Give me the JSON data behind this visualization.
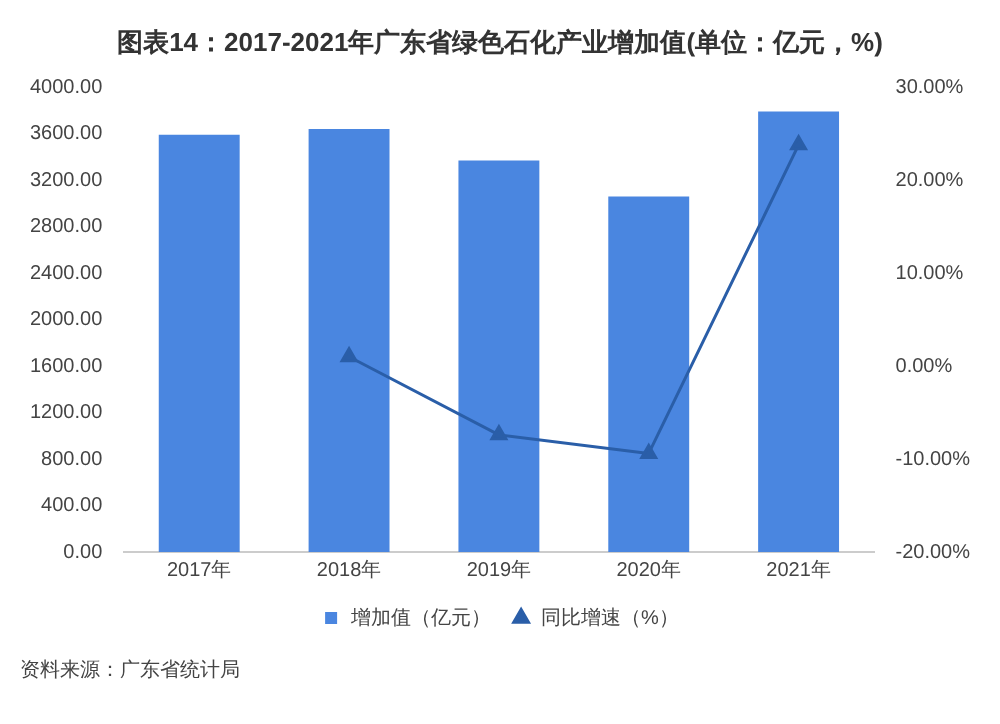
{
  "chart_data": {
    "type": "bar",
    "title": "图表14：2017-2021年广东省绿色石化产业增加值(单位：亿元，%)",
    "categories": [
      "2017年",
      "2018年",
      "2019年",
      "2020年",
      "2021年"
    ],
    "series": [
      {
        "name": "增加值（亿元）",
        "color": "#4a86e0",
        "values": [
          3590,
          3640,
          3370,
          3060,
          3790
        ]
      },
      {
        "name": "同比增速（%）",
        "type": "line",
        "color": "#2a5ea8",
        "axis": "y2",
        "marker": "triangle",
        "values": [
          null,
          1.0,
          -7.4,
          -9.4,
          23.8
        ]
      }
    ],
    "ylim": [
      0,
      4000
    ],
    "yticks": [
      {
        "value": 0,
        "label": "0.00"
      },
      {
        "value": 400,
        "label": "400.00"
      },
      {
        "value": 800,
        "label": "800.00"
      },
      {
        "value": 1200,
        "label": "1200.00"
      },
      {
        "value": 1600,
        "label": "1600.00"
      },
      {
        "value": 2000,
        "label": "2000.00"
      },
      {
        "value": 2400,
        "label": "2400.00"
      },
      {
        "value": 2800,
        "label": "2800.00"
      },
      {
        "value": 3200,
        "label": "3200.00"
      },
      {
        "value": 3600,
        "label": "3600.00"
      },
      {
        "value": 4000,
        "label": "4000.00"
      }
    ],
    "y2lim": [
      -20,
      30
    ],
    "y2ticks": [
      {
        "value": -20,
        "label": "-20.00%"
      },
      {
        "value": -10,
        "label": "-10.00%"
      },
      {
        "value": 0,
        "label": "0.00%"
      },
      {
        "value": 10,
        "label": "10.00%"
      },
      {
        "value": 20,
        "label": "20.00%"
      },
      {
        "value": 30,
        "label": "30.00%"
      }
    ],
    "grid": false,
    "legend": "bottom",
    "annotations": [
      "资料来源：广东省统计局"
    ]
  }
}
